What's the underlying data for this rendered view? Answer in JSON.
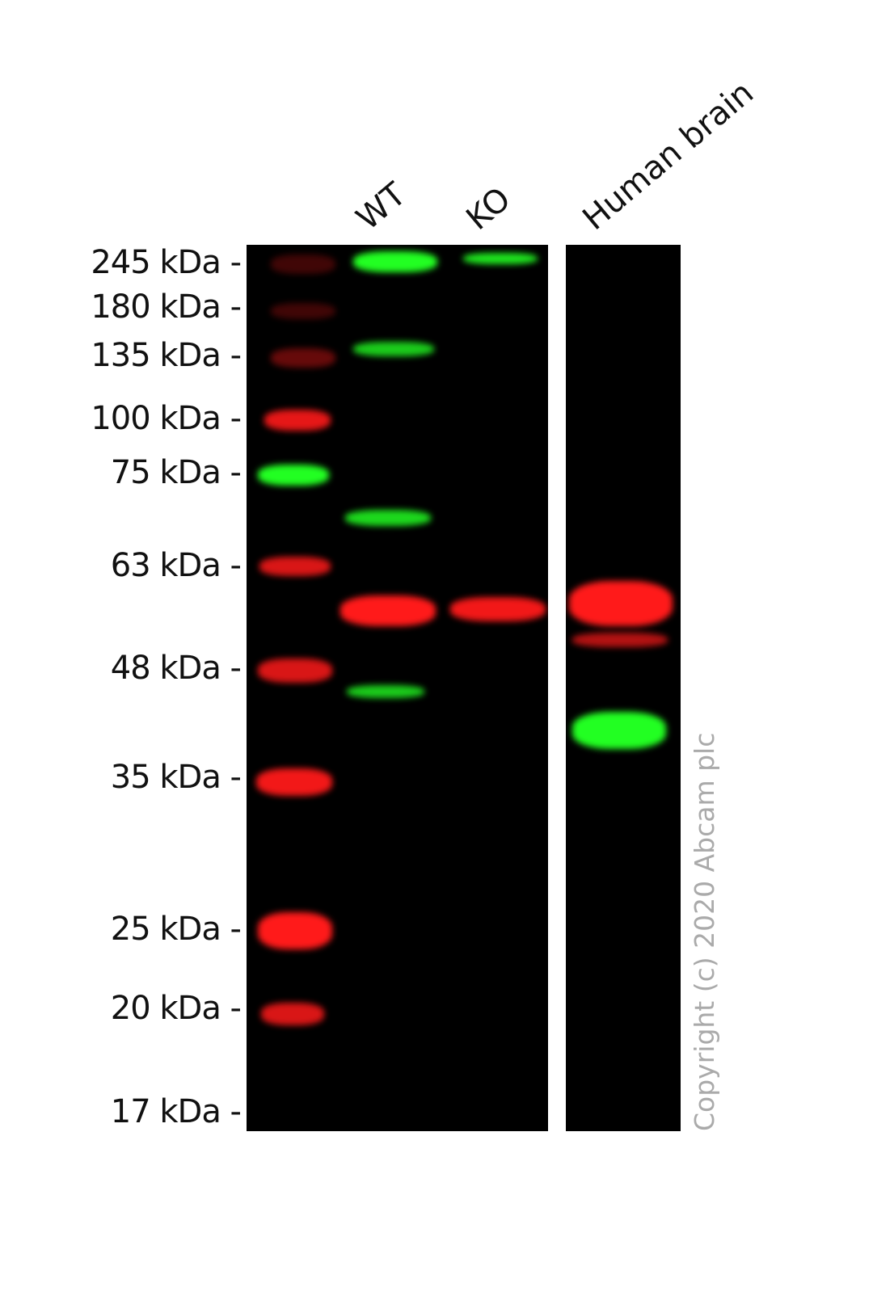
{
  "figure": {
    "lanes": [
      {
        "label": "WT"
      },
      {
        "label": "KO"
      },
      {
        "label": "Human brain"
      }
    ],
    "markers": [
      "245 kDa -",
      "180 kDa -",
      "135 kDa -",
      "100 kDa -",
      "75 kDa -",
      "63 kDa -",
      "48 kDa -",
      "35 kDa -",
      "25 kDa -",
      "20 kDa -",
      "17 kDa -"
    ],
    "copyright": "Copyright (c) 2020 Abcam plc",
    "colors": {
      "red_channel": "#ff1a1a",
      "green_channel": "#22ff22",
      "background": "#000000"
    }
  }
}
